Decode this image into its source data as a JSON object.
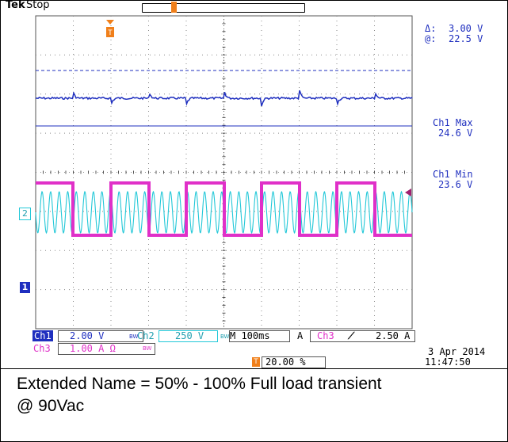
{
  "header": {
    "brand": "Tek",
    "state": "Stop",
    "trigger_position_marker": "T",
    "trigger_marker": "T"
  },
  "cursor_readout": {
    "delta_label": "Δ:",
    "delta_value": "3.00 V",
    "at_label": "@:",
    "at_value": "22.5 V"
  },
  "measurements": [
    {
      "label": "Ch1 Max",
      "value": "24.6 V"
    },
    {
      "label": "Ch1 Min",
      "value": "23.6 V"
    }
  ],
  "channel_markers": {
    "ch2": "2",
    "ch1": "1"
  },
  "status_bar": {
    "ch1_label": "Ch1",
    "ch1_scale": "2.00 V",
    "bw_symbol1": "BW",
    "ch2_label": "Ch2",
    "ch2_scale": "250 V",
    "bw_symbol2": "BW",
    "timebase": "M 100ms",
    "trigger_source_prefix": "A",
    "trigger_source": "Ch3",
    "trigger_slope": "♪",
    "trigger_level": "2.50 A",
    "ch3_label": "Ch3",
    "ch3_scale": "1.00 A Ω",
    "bw_symbol3": "BW",
    "trigger_pos_icon": "T",
    "trigger_pos_value": "20.00 %",
    "date": "3 Apr 2014",
    "time": "11:47:50"
  },
  "caption": {
    "line1": "Extended Name = 50% - 100% Full load transient",
    "line2": "@ 90Vac"
  },
  "colors": {
    "ch1": "#1f2fbf",
    "ch2": "#22c8d8",
    "ch3": "#e030c8",
    "trigger": "#f07f1a",
    "grid": "#555555"
  }
}
